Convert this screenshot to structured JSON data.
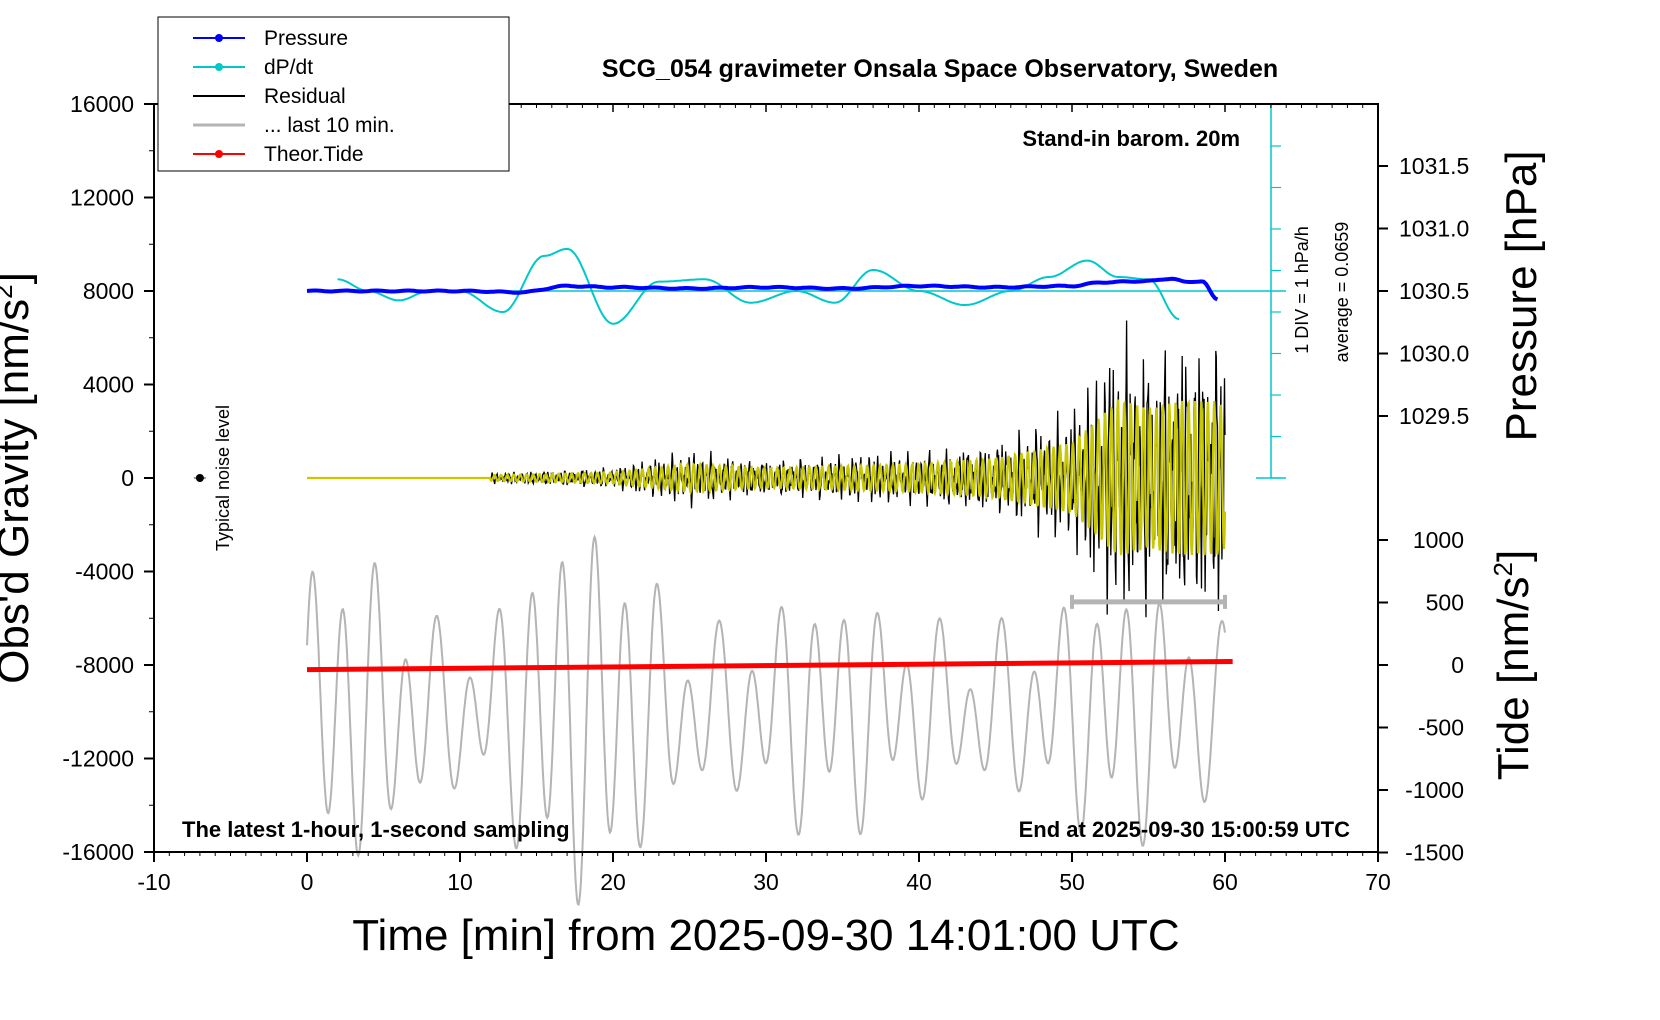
{
  "chart_data": {
    "type": "line",
    "title": "SCG_054 gravimeter Onsala Space Observatory, Sweden",
    "xlabel": "Time [min] from 2025-09-30 14:01:00 UTC",
    "ylabel_left": "Obs'd Gravity [nm/s",
    "ylabel_left_sup": "2",
    "ylabel_left_end": "]",
    "ylabel_right_top": "Pressure [hPa]",
    "ylabel_right_bottom": "Tide [nm/s",
    "ylabel_right_bottom_sup": "2",
    "ylabel_right_bottom_end": "]",
    "xlim": [
      -10,
      70
    ],
    "ylim": [
      -16000,
      16000
    ],
    "x_ticks": [
      "-10",
      "0",
      "10",
      "20",
      "30",
      "40",
      "50",
      "60",
      "70"
    ],
    "y_ticks": [
      "16000",
      "12000",
      "8000",
      "4000",
      "0",
      "-4000",
      "-8000",
      "-12000",
      "-16000"
    ],
    "pressure_ticks": [
      "1031.5",
      "1031.0",
      "1030.5",
      "1030.0",
      "1029.5"
    ],
    "tide_ticks": [
      "1000",
      "500",
      "0",
      "-500",
      "-1000",
      "-1500"
    ],
    "annotations": {
      "stand_in": "Stand-in barom. 20m",
      "div_label": "1 DIV = 1 hPa/h",
      "average": "average = 0.0659",
      "noise": "Typical noise level",
      "latest": "The latest 1-hour, 1-second sampling",
      "end_at": "End at 2025-09-30 15:00:59 UTC"
    },
    "legend": [
      {
        "name": "Pressure",
        "color": "#0000ff",
        "marker": true
      },
      {
        "name": "dP/dt",
        "color": "#00c8c8",
        "marker": true
      },
      {
        "name": "Residual",
        "color": "#000000",
        "marker": false
      },
      {
        "name": "... last 10 min.",
        "color": "#b4b4b4",
        "marker": false
      },
      {
        "name": "Theor.Tide",
        "color": "#ff0000",
        "marker": true
      }
    ],
    "series": [
      {
        "name": "Pressure",
        "unit": "hPa",
        "x": [
          0,
          5,
          10,
          14,
          17,
          20,
          25,
          30,
          35,
          40,
          45,
          50,
          52,
          55,
          56.5,
          57.5,
          58.5,
          59.5
        ],
        "values": [
          1030.5,
          1030.5,
          1030.5,
          1030.49,
          1030.54,
          1030.53,
          1030.52,
          1030.53,
          1030.52,
          1030.54,
          1030.53,
          1030.54,
          1030.57,
          1030.58,
          1030.6,
          1030.57,
          1030.58,
          1030.43
        ]
      },
      {
        "name": "dP/dt",
        "unit": "nm/s2",
        "x": [
          2,
          4,
          6,
          8,
          10,
          12.8,
          15.5,
          17,
          20,
          23,
          26,
          29,
          32,
          34.5,
          37,
          40,
          43,
          46,
          48.5,
          51,
          53,
          55,
          57
        ],
        "values": [
          8500,
          8000,
          7600,
          8000,
          8000,
          7100,
          9500,
          9800,
          6600,
          8400,
          8500,
          7500,
          8000,
          7500,
          8900,
          8000,
          7400,
          8000,
          8600,
          9300,
          8600,
          8500,
          6800
        ]
      },
      {
        "name": "Residual",
        "unit": "nm/s2",
        "x": [
          0,
          12,
          20,
          25,
          30,
          40,
          45,
          50,
          52,
          53,
          55,
          57,
          59.5,
          60
        ],
        "envelope": [
          0,
          200,
          400,
          1000,
          700,
          1000,
          1400,
          2500,
          4500,
          5600,
          5000,
          5500,
          5500,
          5000
        ]
      },
      {
        "name": "... last 10 min.",
        "unit": "nm/s2",
        "x_range": [
          0,
          60
        ],
        "amplitude": 7000,
        "offset": -10000
      },
      {
        "name": "Theor.Tide",
        "unit": "nm/s2",
        "x": [
          0,
          60.5
        ],
        "values": [
          -8200,
          -7850
        ]
      }
    ],
    "markers": [
      {
        "name": "typical-noise",
        "x": -7,
        "y": 0
      },
      {
        "name": "last-10-min-bar",
        "x": [
          50,
          60
        ],
        "y": -5300
      }
    ],
    "grid": false,
    "legend_position": "top-left"
  }
}
